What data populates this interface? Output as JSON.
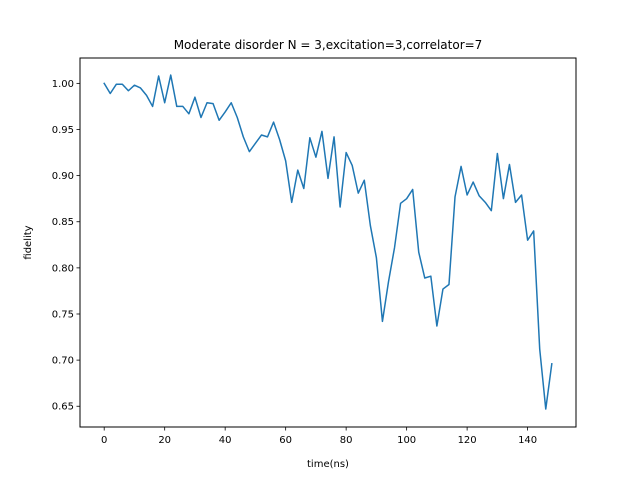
{
  "chart_data": {
    "type": "line",
    "title": "Moderate disorder N =  3,excitation=3,correlator=7",
    "xlabel": "time(ns)",
    "ylabel": "fidelity",
    "xlim": [
      -8,
      156
    ],
    "ylim": [
      0.6275,
      1.0275
    ],
    "xticks": [
      0,
      20,
      40,
      60,
      80,
      100,
      120,
      140
    ],
    "xtick_labels": [
      "0",
      "20",
      "40",
      "60",
      "80",
      "100",
      "120",
      "140"
    ],
    "yticks": [
      0.65,
      0.7,
      0.75,
      0.8,
      0.85,
      0.9,
      0.95,
      1.0
    ],
    "ytick_labels": [
      "0.65",
      "0.70",
      "0.75",
      "0.80",
      "0.85",
      "0.90",
      "0.95",
      "1.00"
    ],
    "grid": false,
    "series": [
      {
        "color": "#1f77b4",
        "x": [
          0,
          2,
          4,
          6,
          8,
          10,
          12,
          14,
          16,
          18,
          20,
          22,
          24,
          26,
          28,
          30,
          32,
          34,
          36,
          38,
          40,
          42,
          44,
          46,
          48,
          50,
          52,
          54,
          56,
          58,
          60,
          62,
          64,
          66,
          68,
          70,
          72,
          74,
          76,
          78,
          80,
          82,
          84,
          86,
          88,
          90,
          92,
          94,
          96,
          98,
          100,
          102,
          104,
          106,
          108,
          110,
          112,
          114,
          116,
          118,
          120,
          122,
          124,
          126,
          128,
          130,
          132,
          134,
          136,
          138,
          140,
          142,
          144,
          146,
          148
        ],
        "y": [
          1.0,
          0.989,
          0.999,
          0.999,
          0.992,
          0.998,
          0.995,
          0.987,
          0.975,
          1.008,
          0.979,
          1.009,
          0.975,
          0.975,
          0.967,
          0.985,
          0.963,
          0.979,
          0.978,
          0.96,
          0.969,
          0.979,
          0.963,
          0.942,
          0.926,
          0.935,
          0.944,
          0.942,
          0.958,
          0.939,
          0.916,
          0.871,
          0.906,
          0.886,
          0.941,
          0.92,
          0.948,
          0.897,
          0.942,
          0.866,
          0.925,
          0.911,
          0.881,
          0.895,
          0.846,
          0.811,
          0.742,
          0.785,
          0.822,
          0.87,
          0.875,
          0.885,
          0.817,
          0.789,
          0.791,
          0.737,
          0.777,
          0.782,
          0.877,
          0.91,
          0.879,
          0.893,
          0.878,
          0.871,
          0.862,
          0.924,
          0.875,
          0.912,
          0.871,
          0.879,
          0.83,
          0.84,
          0.712,
          0.647,
          0.696
        ]
      }
    ]
  }
}
